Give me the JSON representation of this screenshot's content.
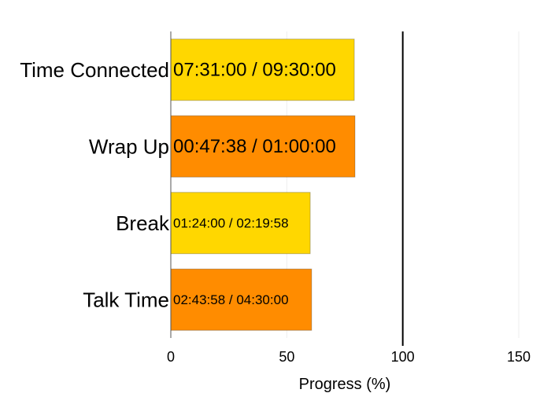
{
  "chart_data": {
    "type": "bar",
    "orientation": "horizontal",
    "title": "",
    "xlabel": "Progress (%)",
    "ylabel": "",
    "xlim": [
      0,
      150
    ],
    "xticks": [
      0,
      50,
      100,
      150
    ],
    "grid": true,
    "target_line": 100,
    "categories": [
      "Time Connected",
      "Wrap Up",
      "Break",
      "Talk Time"
    ],
    "values": [
      79.1,
      79.4,
      60.1,
      60.7
    ],
    "bar_labels": [
      "07:31:00 / 09:30:00",
      "00:47:38 / 01:00:00",
      "01:24:00 / 02:19:58",
      "02:43:58 / 04:30:00"
    ],
    "colors": [
      "#FFD700",
      "#FF8C00",
      "#FFD700",
      "#FF8C00"
    ]
  }
}
